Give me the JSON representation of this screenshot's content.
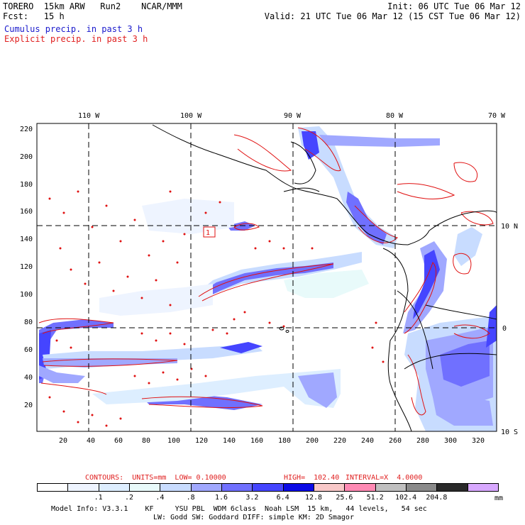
{
  "header": {
    "line1_left": "TORERO  15km ARW   Run2    NCAR/MMM",
    "line1_right": "Init: 06 UTC Tue 06 Mar 12",
    "line2_left": "Fcst:   15 h",
    "line2_right": "Valid: 21 UTC Tue 06 Mar 12 (15 CST Tue 06 Mar 12)",
    "cumulus_label": "Cumulus precip. in past 3 h",
    "explicit_label": "Explicit precip. in past 3 h"
  },
  "map": {
    "lon_labels": [
      "110 W",
      "100 W",
      "90 W",
      "80 W",
      "70 W"
    ],
    "lat_labels": [
      "10 N",
      "0",
      "10 S"
    ],
    "y_ticks": [
      "220",
      "200",
      "180",
      "160",
      "140",
      "120",
      "100",
      "80",
      "60",
      "40",
      "20"
    ],
    "x_ticks": [
      "20",
      "40",
      "60",
      "80",
      "100",
      "120",
      "140",
      "160",
      "180",
      "200",
      "220",
      "240",
      "260",
      "280",
      "300",
      "320"
    ],
    "box_label": "1",
    "colors": {
      "cumulus": "#3030ff",
      "explicit": "#e01010",
      "coast": "#000000"
    }
  },
  "contours_line": {
    "contours_label": "CONTOURS:  UNITS=mm  LOW= 0.10000",
    "high_label": "HIGH=  102.40",
    "interval_label": "INTERVAL=X  4.0000"
  },
  "colorbar": {
    "colors": [
      "#ffffff",
      "#eef4ff",
      "#ddeeff",
      "#e8fafa",
      "#c8dcff",
      "#a0a8ff",
      "#7070ff",
      "#4545ff",
      "#0a0ae6",
      "#f8c8c8",
      "#ff8ab4",
      "#c0c0c0",
      "#8a8a8a",
      "#2a2a2a",
      "#d8a8ff"
    ],
    "labels": [
      ".1",
      ".2",
      ".4",
      ".8",
      "1.6",
      "3.2",
      "6.4",
      "12.8",
      "25.6",
      "51.2",
      "102.4",
      "204.8"
    ],
    "units": "mm"
  },
  "footer": {
    "line1": "Model Info: V3.3.1    KF     YSU PBL  WDM 6class  Noah LSM  15 km,   44 levels,   54 sec",
    "line2": "LW: Godd SW: Goddard DIFF: simple KM: 2D Smagor"
  }
}
